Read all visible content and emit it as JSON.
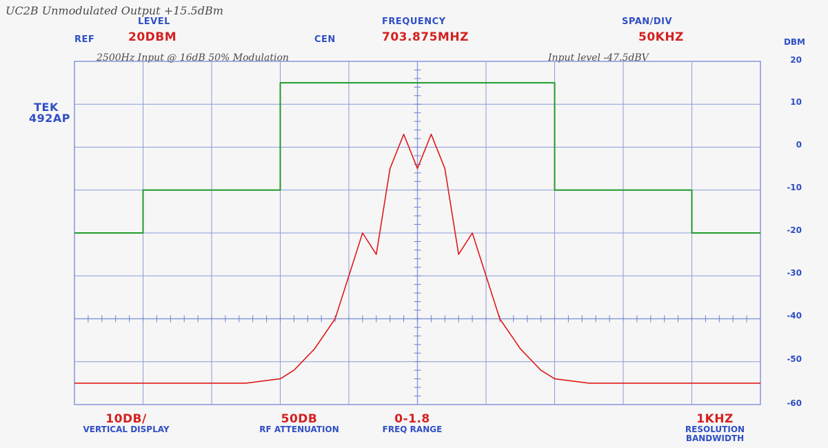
{
  "notes": {
    "top_left": "UC2B  Unmodulated Output +15.5dBm",
    "input_left": "2500Hz Input @ 16dB  50% Modulation",
    "input_right": "Input level -47.5dBV"
  },
  "header": {
    "level_label": "LEVEL",
    "ref_label": "REF",
    "ref_value": "20DBM",
    "frequency_label": "FREQUENCY",
    "cen_label": "CEN",
    "frequency_value": "703.875MHZ",
    "span_label": "SPAN/DIV",
    "span_value": "50KHZ"
  },
  "instrument": {
    "line1": "TEK",
    "line2": "492AP"
  },
  "y_axis": {
    "unit": "DBM",
    "ticks": [
      "20",
      "10",
      "0",
      "-10",
      "-20",
      "-30",
      "-40",
      "-50",
      "-60"
    ]
  },
  "footer": {
    "vertical_value": "10DB/",
    "vertical_label": "VERTICAL DISPLAY",
    "rf_value": "50DB",
    "rf_label": "RF ATTENUATION",
    "freq_value": "0-1.8",
    "freq_label": "FREQ RANGE",
    "rbw_value": "1KHZ",
    "rbw_label": "RESOLUTION BANDWIDTH"
  },
  "chart_data": {
    "type": "line",
    "x_unit": "divisions",
    "xlim": [
      0,
      10
    ],
    "ylim": [
      -60,
      20
    ],
    "grid": true,
    "series": [
      {
        "color": "#1f9a2a",
        "x": [
          0,
          1,
          1,
          3,
          3,
          7,
          7,
          9,
          9,
          10
        ],
        "y": [
          -20,
          -20,
          -10,
          -10,
          15,
          15,
          -10,
          -10,
          -20,
          -20
        ]
      },
      {
        "color": "#e01818",
        "x": [
          0,
          1,
          2,
          2.5,
          3,
          3.2,
          3.5,
          3.8,
          4.0,
          4.2,
          4.4,
          4.6,
          4.8,
          5.0,
          5.2,
          5.4,
          5.6,
          5.8,
          6.0,
          6.2,
          6.5,
          6.8,
          7.0,
          7.5,
          8,
          9,
          10
        ],
        "y": [
          -55,
          -55,
          -55,
          -55,
          -54,
          -52,
          -47,
          -40,
          -30,
          -20,
          -25,
          -5,
          3,
          -5,
          3,
          -5,
          -25,
          -20,
          -30,
          -40,
          -47,
          -52,
          -54,
          -55,
          -55,
          -55,
          -55
        ]
      }
    ]
  }
}
